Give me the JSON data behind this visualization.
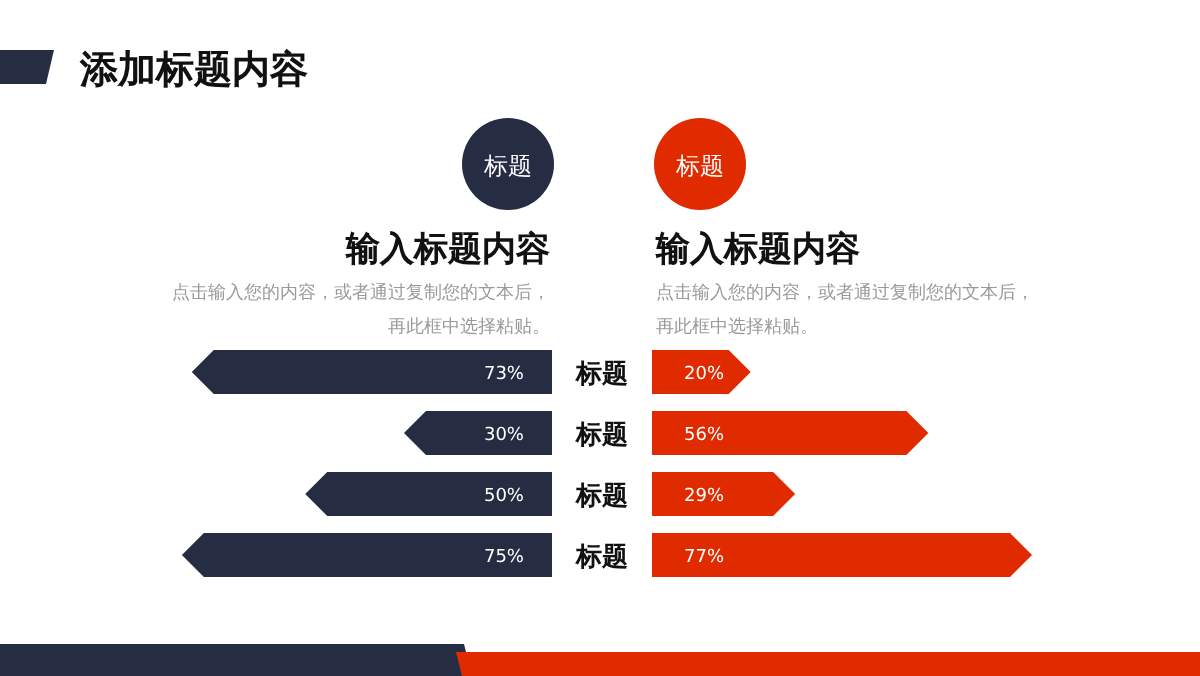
{
  "chart_data": [
    {
      "type": "bar",
      "orientation": "horizontal",
      "title": "添加标题内容",
      "categories": [
        "标题",
        "标题",
        "标题",
        "标题"
      ],
      "series": [
        {
          "name": "标题",
          "color": "#262d43",
          "values": [
            73,
            30,
            50,
            75
          ],
          "value_labels": [
            "73%",
            "30%",
            "50%",
            "75%"
          ]
        }
      ],
      "legend": "top",
      "annotations": [
        "输入标题内容",
        "点击输入您的内容，或者通过复制您的文本后，",
        "再此框中选择粘贴。"
      ]
    },
    {
      "type": "bar",
      "orientation": "horizontal",
      "categories": [
        null,
        null,
        null,
        null
      ],
      "series": [
        {
          "name": "标题",
          "color": "#e02a00",
          "values": [
            20,
            56,
            29,
            77
          ],
          "value_labels": [
            "20%",
            "56%",
            "29%",
            "77%"
          ]
        }
      ],
      "legend": "top",
      "annotations": [
        "输入标题内容",
        "点击输入您的内容，或者通过复制您的文本后，",
        "再此框中选择粘贴。"
      ]
    }
  ]
}
